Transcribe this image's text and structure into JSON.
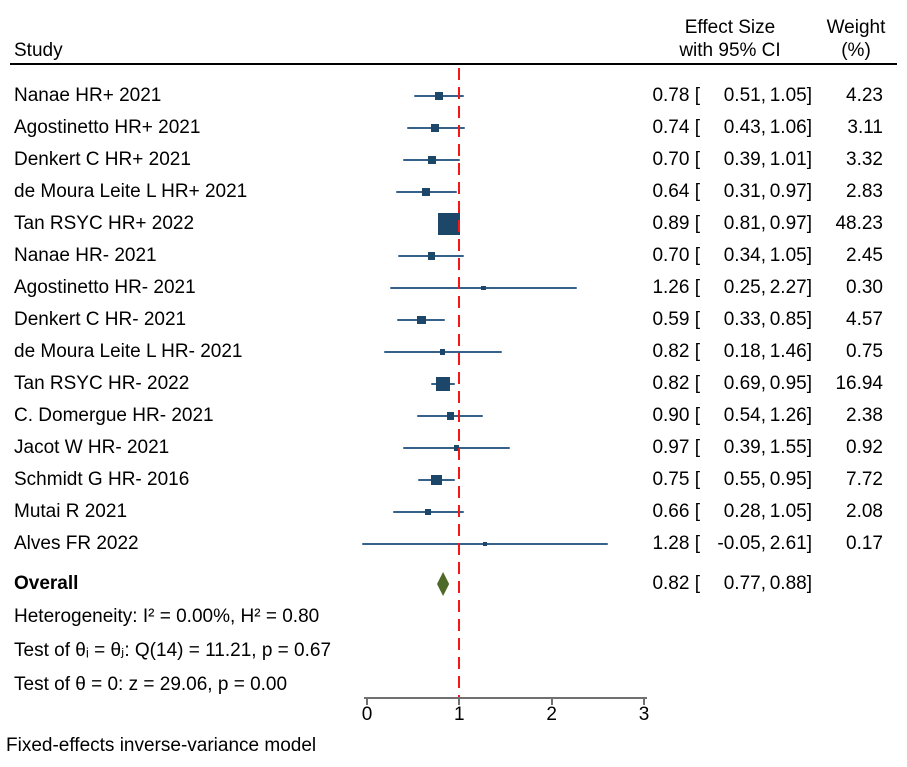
{
  "header": {
    "study_col": "Study",
    "effect_col_line1": "Effect Size",
    "effect_col_line2": "with 95% CI",
    "weight_col_line1": "Weight",
    "weight_col_line2": "(%)"
  },
  "chart_data": {
    "type": "forest",
    "x_ticks": [
      0,
      1,
      2,
      3
    ],
    "x_range": [
      0,
      3
    ],
    "reference_line": 1,
    "studies": [
      {
        "label": "Nanae HR+ 2021",
        "es": 0.78,
        "lo": 0.51,
        "hi": 1.05,
        "weight": 4.23
      },
      {
        "label": "Agostinetto HR+ 2021",
        "es": 0.74,
        "lo": 0.43,
        "hi": 1.06,
        "weight": 3.11
      },
      {
        "label": "Denkert C HR+ 2021",
        "es": 0.7,
        "lo": 0.39,
        "hi": 1.01,
        "weight": 3.32
      },
      {
        "label": "de Moura Leite L HR+ 2021",
        "es": 0.64,
        "lo": 0.31,
        "hi": 0.97,
        "weight": 2.83
      },
      {
        "label": "Tan RSYC HR+ 2022",
        "es": 0.89,
        "lo": 0.81,
        "hi": 0.97,
        "weight": 48.23
      },
      {
        "label": "Nanae HR- 2021",
        "es": 0.7,
        "lo": 0.34,
        "hi": 1.05,
        "weight": 2.45
      },
      {
        "label": "Agostinetto HR- 2021",
        "es": 1.26,
        "lo": 0.25,
        "hi": 2.27,
        "weight": 0.3
      },
      {
        "label": "Denkert C HR- 2021",
        "es": 0.59,
        "lo": 0.33,
        "hi": 0.85,
        "weight": 4.57
      },
      {
        "label": "de Moura Leite L HR- 2021",
        "es": 0.82,
        "lo": 0.18,
        "hi": 1.46,
        "weight": 0.75
      },
      {
        "label": "Tan RSYC HR- 2022",
        "es": 0.82,
        "lo": 0.69,
        "hi": 0.95,
        "weight": 16.94
      },
      {
        "label": "C. Domergue HR- 2021",
        "es": 0.9,
        "lo": 0.54,
        "hi": 1.26,
        "weight": 2.38
      },
      {
        "label": "Jacot W HR- 2021",
        "es": 0.97,
        "lo": 0.39,
        "hi": 1.55,
        "weight": 0.92
      },
      {
        "label": "Schmidt G HR- 2016",
        "es": 0.75,
        "lo": 0.55,
        "hi": 0.95,
        "weight": 7.72
      },
      {
        "label": "Mutai R 2021",
        "es": 0.66,
        "lo": 0.28,
        "hi": 1.05,
        "weight": 2.08
      },
      {
        "label": "Alves FR 2022",
        "es": 1.28,
        "lo": -0.05,
        "hi": 2.61,
        "weight": 0.17
      }
    ],
    "overall": {
      "label": "Overall",
      "es": 0.82,
      "lo": 0.77,
      "hi": 0.88
    },
    "stats_lines": [
      "Heterogeneity: I² = 0.00%, H² = 0.80",
      "Test of θᵢ = θⱼ: Q(14) = 11.21, p = 0.67",
      "Test of θ = 0: z = 29.06, p = 0.00"
    ],
    "footer": "Fixed-effects inverse-variance model",
    "colors": {
      "marker": "#1d4768",
      "ci_line": "#35618a",
      "ref_line": "#f51616",
      "diamond": "#4e6a28",
      "axis": "#707070",
      "text": "#000000"
    }
  }
}
